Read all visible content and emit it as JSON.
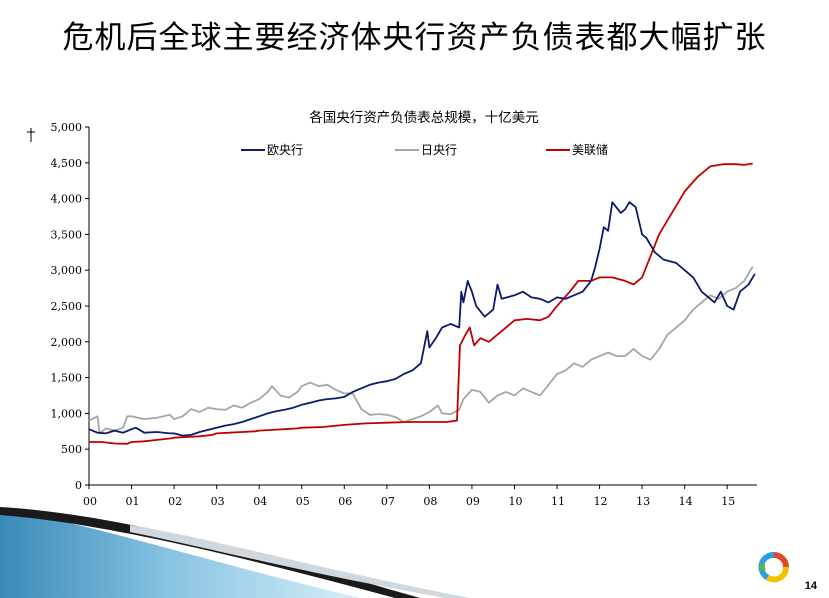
{
  "slide": {
    "title": "危机后全球主要经济体央行资产负债表都大幅扩张",
    "page_number": "14"
  },
  "chart_data": {
    "type": "line",
    "title": "各国央行资产负债表总规模，十亿美元",
    "ylim": [
      0,
      5000
    ],
    "yticks": [
      0,
      500,
      1000,
      1500,
      2000,
      2500,
      3000,
      3500,
      4000,
      4500,
      5000
    ],
    "ytick_labels": [
      "0",
      "500",
      "1,000",
      "1,500",
      "2,000",
      "2,500",
      "3,000",
      "3,500",
      "4,000",
      "4,500",
      "5,000"
    ],
    "xlim": [
      2000,
      2015.7
    ],
    "xticks": [
      2000,
      2001,
      2002,
      2003,
      2004,
      2005,
      2006,
      2007,
      2008,
      2009,
      2010,
      2011,
      2012,
      2013,
      2014,
      2015
    ],
    "xtick_labels": [
      "00",
      "01",
      "02",
      "03",
      "04",
      "05",
      "06",
      "07",
      "08",
      "09",
      "10",
      "11",
      "12",
      "13",
      "14",
      "15"
    ],
    "legend_placement": "top",
    "series": [
      {
        "name": "欧央行",
        "color": "#0a1a6e",
        "points": [
          [
            2000.0,
            780
          ],
          [
            2000.2,
            730
          ],
          [
            2000.4,
            720
          ],
          [
            2000.6,
            760
          ],
          [
            2000.8,
            730
          ],
          [
            2001.0,
            780
          ],
          [
            2001.1,
            800
          ],
          [
            2001.3,
            730
          ],
          [
            2001.6,
            740
          ],
          [
            2001.9,
            720
          ],
          [
            2002.0,
            720
          ],
          [
            2002.2,
            690
          ],
          [
            2002.4,
            700
          ],
          [
            2002.6,
            740
          ],
          [
            2002.8,
            770
          ],
          [
            2003.0,
            800
          ],
          [
            2003.2,
            830
          ],
          [
            2003.4,
            850
          ],
          [
            2003.6,
            880
          ],
          [
            2003.8,
            920
          ],
          [
            2004.0,
            960
          ],
          [
            2004.2,
            1000
          ],
          [
            2004.4,
            1030
          ],
          [
            2004.6,
            1050
          ],
          [
            2004.8,
            1080
          ],
          [
            2005.0,
            1120
          ],
          [
            2005.2,
            1150
          ],
          [
            2005.4,
            1180
          ],
          [
            2005.6,
            1200
          ],
          [
            2005.8,
            1210
          ],
          [
            2006.0,
            1230
          ],
          [
            2006.2,
            1300
          ],
          [
            2006.4,
            1350
          ],
          [
            2006.6,
            1400
          ],
          [
            2006.8,
            1430
          ],
          [
            2007.0,
            1450
          ],
          [
            2007.2,
            1480
          ],
          [
            2007.4,
            1550
          ],
          [
            2007.6,
            1600
          ],
          [
            2007.8,
            1700
          ],
          [
            2007.95,
            2150
          ],
          [
            2008.0,
            1920
          ],
          [
            2008.15,
            2050
          ],
          [
            2008.3,
            2200
          ],
          [
            2008.5,
            2250
          ],
          [
            2008.7,
            2200
          ],
          [
            2008.75,
            2700
          ],
          [
            2008.8,
            2550
          ],
          [
            2008.9,
            2850
          ],
          [
            2009.0,
            2700
          ],
          [
            2009.1,
            2500
          ],
          [
            2009.3,
            2350
          ],
          [
            2009.5,
            2450
          ],
          [
            2009.6,
            2800
          ],
          [
            2009.7,
            2600
          ],
          [
            2010.0,
            2650
          ],
          [
            2010.2,
            2700
          ],
          [
            2010.4,
            2620
          ],
          [
            2010.6,
            2600
          ],
          [
            2010.8,
            2550
          ],
          [
            2011.0,
            2620
          ],
          [
            2011.2,
            2600
          ],
          [
            2011.4,
            2650
          ],
          [
            2011.6,
            2700
          ],
          [
            2011.8,
            2850
          ],
          [
            2011.9,
            3050
          ],
          [
            2012.0,
            3300
          ],
          [
            2012.1,
            3600
          ],
          [
            2012.2,
            3550
          ],
          [
            2012.3,
            3950
          ],
          [
            2012.5,
            3800
          ],
          [
            2012.6,
            3850
          ],
          [
            2012.7,
            3950
          ],
          [
            2012.85,
            3880
          ],
          [
            2013.0,
            3500
          ],
          [
            2013.1,
            3450
          ],
          [
            2013.3,
            3250
          ],
          [
            2013.5,
            3150
          ],
          [
            2013.8,
            3100
          ],
          [
            2014.0,
            3000
          ],
          [
            2014.2,
            2900
          ],
          [
            2014.4,
            2700
          ],
          [
            2014.6,
            2600
          ],
          [
            2014.7,
            2550
          ],
          [
            2014.85,
            2700
          ],
          [
            2015.0,
            2500
          ],
          [
            2015.15,
            2450
          ],
          [
            2015.3,
            2700
          ],
          [
            2015.5,
            2800
          ],
          [
            2015.65,
            2950
          ]
        ]
      },
      {
        "name": "日央行",
        "color": "#a6a6a6",
        "points": [
          [
            2000.0,
            900
          ],
          [
            2000.2,
            960
          ],
          [
            2000.25,
            720
          ],
          [
            2000.4,
            790
          ],
          [
            2000.6,
            760
          ],
          [
            2000.8,
            800
          ],
          [
            2000.9,
            960
          ],
          [
            2001.0,
            960
          ],
          [
            2001.3,
            920
          ],
          [
            2001.6,
            940
          ],
          [
            2001.9,
            980
          ],
          [
            2002.0,
            920
          ],
          [
            2002.2,
            960
          ],
          [
            2002.4,
            1060
          ],
          [
            2002.6,
            1020
          ],
          [
            2002.8,
            1080
          ],
          [
            2003.0,
            1060
          ],
          [
            2003.2,
            1050
          ],
          [
            2003.4,
            1110
          ],
          [
            2003.6,
            1080
          ],
          [
            2003.8,
            1150
          ],
          [
            2004.0,
            1200
          ],
          [
            2004.2,
            1300
          ],
          [
            2004.3,
            1380
          ],
          [
            2004.5,
            1250
          ],
          [
            2004.7,
            1220
          ],
          [
            2004.9,
            1300
          ],
          [
            2005.0,
            1380
          ],
          [
            2005.2,
            1430
          ],
          [
            2005.4,
            1380
          ],
          [
            2005.6,
            1400
          ],
          [
            2005.8,
            1330
          ],
          [
            2006.0,
            1280
          ],
          [
            2006.2,
            1280
          ],
          [
            2006.4,
            1060
          ],
          [
            2006.6,
            980
          ],
          [
            2006.8,
            990
          ],
          [
            2007.0,
            980
          ],
          [
            2007.2,
            950
          ],
          [
            2007.4,
            880
          ],
          [
            2007.6,
            920
          ],
          [
            2007.8,
            960
          ],
          [
            2008.0,
            1020
          ],
          [
            2008.2,
            1110
          ],
          [
            2008.3,
            1000
          ],
          [
            2008.5,
            990
          ],
          [
            2008.7,
            1050
          ],
          [
            2008.8,
            1200
          ],
          [
            2009.0,
            1330
          ],
          [
            2009.2,
            1300
          ],
          [
            2009.4,
            1150
          ],
          [
            2009.6,
            1250
          ],
          [
            2009.8,
            1300
          ],
          [
            2010.0,
            1250
          ],
          [
            2010.2,
            1350
          ],
          [
            2010.4,
            1300
          ],
          [
            2010.6,
            1250
          ],
          [
            2010.8,
            1400
          ],
          [
            2011.0,
            1550
          ],
          [
            2011.2,
            1600
          ],
          [
            2011.4,
            1700
          ],
          [
            2011.6,
            1650
          ],
          [
            2011.8,
            1750
          ],
          [
            2012.0,
            1800
          ],
          [
            2012.2,
            1850
          ],
          [
            2012.4,
            1800
          ],
          [
            2012.6,
            1800
          ],
          [
            2012.8,
            1900
          ],
          [
            2013.0,
            1800
          ],
          [
            2013.2,
            1750
          ],
          [
            2013.4,
            1900
          ],
          [
            2013.6,
            2100
          ],
          [
            2013.8,
            2200
          ],
          [
            2014.0,
            2300
          ],
          [
            2014.2,
            2450
          ],
          [
            2014.4,
            2550
          ],
          [
            2014.6,
            2650
          ],
          [
            2014.8,
            2600
          ],
          [
            2015.0,
            2700
          ],
          [
            2015.2,
            2750
          ],
          [
            2015.4,
            2850
          ],
          [
            2015.6,
            3050
          ]
        ]
      },
      {
        "name": "美联储",
        "color": "#c00000",
        "points": [
          [
            2000.0,
            600
          ],
          [
            2000.3,
            600
          ],
          [
            2000.6,
            580
          ],
          [
            2000.9,
            575
          ],
          [
            2001.0,
            600
          ],
          [
            2001.3,
            610
          ],
          [
            2001.6,
            630
          ],
          [
            2001.9,
            650
          ],
          [
            2002.0,
            660
          ],
          [
            2002.3,
            670
          ],
          [
            2002.6,
            680
          ],
          [
            2002.9,
            700
          ],
          [
            2003.0,
            720
          ],
          [
            2003.3,
            730
          ],
          [
            2003.6,
            740
          ],
          [
            2003.9,
            750
          ],
          [
            2004.0,
            760
          ],
          [
            2004.3,
            770
          ],
          [
            2004.6,
            780
          ],
          [
            2004.9,
            790
          ],
          [
            2005.0,
            800
          ],
          [
            2005.5,
            810
          ],
          [
            2006.0,
            840
          ],
          [
            2006.5,
            860
          ],
          [
            2007.0,
            870
          ],
          [
            2007.5,
            880
          ],
          [
            2007.8,
            880
          ],
          [
            2008.0,
            880
          ],
          [
            2008.4,
            880
          ],
          [
            2008.65,
            900
          ],
          [
            2008.72,
            1950
          ],
          [
            2008.85,
            2100
          ],
          [
            2008.95,
            2200
          ],
          [
            2009.05,
            1950
          ],
          [
            2009.2,
            2050
          ],
          [
            2009.4,
            2000
          ],
          [
            2009.6,
            2100
          ],
          [
            2009.8,
            2200
          ],
          [
            2010.0,
            2300
          ],
          [
            2010.3,
            2320
          ],
          [
            2010.6,
            2300
          ],
          [
            2010.8,
            2350
          ],
          [
            2011.0,
            2500
          ],
          [
            2011.3,
            2700
          ],
          [
            2011.5,
            2850
          ],
          [
            2011.8,
            2850
          ],
          [
            2012.0,
            2900
          ],
          [
            2012.3,
            2900
          ],
          [
            2012.6,
            2850
          ],
          [
            2012.8,
            2800
          ],
          [
            2013.0,
            2900
          ],
          [
            2013.2,
            3200
          ],
          [
            2013.4,
            3500
          ],
          [
            2013.6,
            3700
          ],
          [
            2013.8,
            3900
          ],
          [
            2014.0,
            4100
          ],
          [
            2014.3,
            4300
          ],
          [
            2014.6,
            4450
          ],
          [
            2014.9,
            4480
          ],
          [
            2015.2,
            4480
          ],
          [
            2015.4,
            4470
          ],
          [
            2015.6,
            4490
          ]
        ]
      }
    ]
  }
}
